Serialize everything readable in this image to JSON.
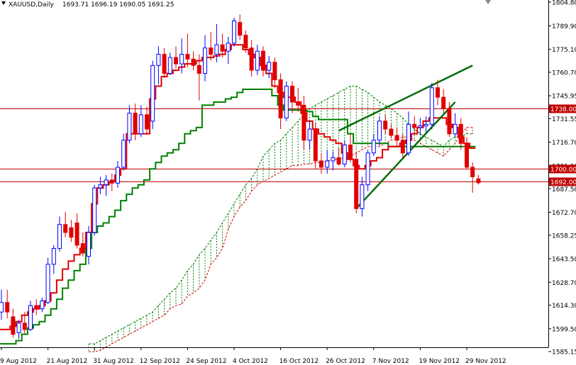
{
  "header": {
    "symbol": "XAUUSD,Daily",
    "ohlc": "1693.71 1696.19 1690.05 1691.25"
  },
  "chart_data": {
    "type": "candlestick",
    "symbol": "XAUUSD",
    "timeframe": "Daily",
    "ylim": [
      1584,
      1806
    ],
    "grid": false,
    "colors": {
      "bull": "#0000ff",
      "bear": "#e00000",
      "tenkan": "#e00000",
      "kijun": "#008000",
      "cloud_bull": "#008000",
      "cloud_bear": "#e00000",
      "trendline": "#0a6e0a",
      "level": "#c00000"
    },
    "y_ticks": [
      "1804.80",
      "1789.90",
      "1775.10",
      "1760.70",
      "1745.95",
      "1731.55",
      "1716.70",
      "1701.90",
      "1687.50",
      "1672.70",
      "1658.25",
      "1643.50",
      "1628.70",
      "1614.30",
      "1599.50",
      "1585.15"
    ],
    "x_ticks": [
      {
        "label": "9 Aug 2012",
        "t": 0
      },
      {
        "label": "21 Aug 2012",
        "t": 8
      },
      {
        "label": "31 Aug 2012",
        "t": 16
      },
      {
        "label": "12 Sep 2012",
        "t": 24
      },
      {
        "label": "24 Sep 2012",
        "t": 32
      },
      {
        "label": "4 Oct 2012",
        "t": 40
      },
      {
        "label": "16 Oct 2012",
        "t": 48
      },
      {
        "label": "26 Oct 2012",
        "t": 56
      },
      {
        "label": "7 Nov 2012",
        "t": 64
      },
      {
        "label": "19 Nov 2012",
        "t": 72
      },
      {
        "label": "29 Nov 2012",
        "t": 80
      }
    ],
    "levels": [
      {
        "label": "1738.00",
        "value": 1738.0
      },
      {
        "label": "1700.00",
        "value": 1700.0
      },
      {
        "label": "1692.00",
        "value": 1692.0
      }
    ],
    "candles": [
      {
        "o": 1610,
        "h": 1624,
        "l": 1605,
        "c": 1616
      },
      {
        "o": 1616,
        "h": 1624,
        "l": 1606,
        "c": 1610
      },
      {
        "o": 1607,
        "h": 1612,
        "l": 1594,
        "c": 1596
      },
      {
        "o": 1597,
        "h": 1605,
        "l": 1593,
        "c": 1603
      },
      {
        "o": 1603,
        "h": 1610,
        "l": 1596,
        "c": 1599
      },
      {
        "o": 1599,
        "h": 1617,
        "l": 1598,
        "c": 1614
      },
      {
        "o": 1614,
        "h": 1618,
        "l": 1608,
        "c": 1612
      },
      {
        "o": 1612,
        "h": 1619,
        "l": 1610,
        "c": 1617
      },
      {
        "o": 1616,
        "h": 1644,
        "l": 1615,
        "c": 1640
      },
      {
        "o": 1640,
        "h": 1652,
        "l": 1634,
        "c": 1650
      },
      {
        "o": 1650,
        "h": 1670,
        "l": 1648,
        "c": 1665
      },
      {
        "o": 1665,
        "h": 1673,
        "l": 1657,
        "c": 1660
      },
      {
        "o": 1663,
        "h": 1668,
        "l": 1654,
        "c": 1657
      },
      {
        "o": 1666,
        "h": 1672,
        "l": 1650,
        "c": 1652
      },
      {
        "o": 1653,
        "h": 1660,
        "l": 1645,
        "c": 1647
      },
      {
        "o": 1645,
        "h": 1664,
        "l": 1640,
        "c": 1660
      },
      {
        "o": 1660,
        "h": 1690,
        "l": 1658,
        "c": 1688
      },
      {
        "o": 1688,
        "h": 1695,
        "l": 1684,
        "c": 1690
      },
      {
        "o": 1690,
        "h": 1696,
        "l": 1683,
        "c": 1693
      },
      {
        "o": 1693,
        "h": 1697,
        "l": 1686,
        "c": 1691
      },
      {
        "o": 1691,
        "h": 1705,
        "l": 1688,
        "c": 1701
      },
      {
        "o": 1701,
        "h": 1722,
        "l": 1699,
        "c": 1718
      },
      {
        "o": 1718,
        "h": 1740,
        "l": 1716,
        "c": 1735
      },
      {
        "o": 1735,
        "h": 1741,
        "l": 1718,
        "c": 1722
      },
      {
        "o": 1722,
        "h": 1740,
        "l": 1720,
        "c": 1734
      },
      {
        "o": 1734,
        "h": 1739,
        "l": 1722,
        "c": 1725
      },
      {
        "o": 1730,
        "h": 1768,
        "l": 1725,
        "c": 1765
      },
      {
        "o": 1765,
        "h": 1777,
        "l": 1753,
        "c": 1772
      },
      {
        "o": 1772,
        "h": 1776,
        "l": 1757,
        "c": 1760
      },
      {
        "o": 1760,
        "h": 1773,
        "l": 1759,
        "c": 1770
      },
      {
        "o": 1770,
        "h": 1777,
        "l": 1763,
        "c": 1766
      },
      {
        "o": 1766,
        "h": 1782,
        "l": 1760,
        "c": 1772
      },
      {
        "o": 1772,
        "h": 1785,
        "l": 1764,
        "c": 1769
      },
      {
        "o": 1769,
        "h": 1774,
        "l": 1762,
        "c": 1765
      },
      {
        "o": 1765,
        "h": 1772,
        "l": 1743,
        "c": 1760
      },
      {
        "o": 1760,
        "h": 1784,
        "l": 1755,
        "c": 1776
      },
      {
        "o": 1776,
        "h": 1786,
        "l": 1768,
        "c": 1772
      },
      {
        "o": 1772,
        "h": 1791,
        "l": 1767,
        "c": 1778
      },
      {
        "o": 1778,
        "h": 1785,
        "l": 1770,
        "c": 1774
      },
      {
        "o": 1774,
        "h": 1783,
        "l": 1766,
        "c": 1779
      },
      {
        "o": 1779,
        "h": 1795,
        "l": 1777,
        "c": 1793
      },
      {
        "o": 1792,
        "h": 1797,
        "l": 1781,
        "c": 1784
      },
      {
        "o": 1784,
        "h": 1787,
        "l": 1773,
        "c": 1776
      },
      {
        "o": 1776,
        "h": 1781,
        "l": 1758,
        "c": 1762
      },
      {
        "o": 1762,
        "h": 1778,
        "l": 1759,
        "c": 1774
      },
      {
        "o": 1774,
        "h": 1777,
        "l": 1758,
        "c": 1762
      },
      {
        "o": 1762,
        "h": 1771,
        "l": 1757,
        "c": 1767
      },
      {
        "o": 1767,
        "h": 1770,
        "l": 1751,
        "c": 1756
      },
      {
        "o": 1756,
        "h": 1760,
        "l": 1725,
        "c": 1732
      },
      {
        "o": 1732,
        "h": 1755,
        "l": 1730,
        "c": 1752
      },
      {
        "o": 1752,
        "h": 1755,
        "l": 1735,
        "c": 1742
      },
      {
        "o": 1742,
        "h": 1751,
        "l": 1736,
        "c": 1740
      },
      {
        "o": 1740,
        "h": 1746,
        "l": 1712,
        "c": 1718
      },
      {
        "o": 1718,
        "h": 1730,
        "l": 1712,
        "c": 1725
      },
      {
        "o": 1725,
        "h": 1729,
        "l": 1700,
        "c": 1705
      },
      {
        "o": 1705,
        "h": 1710,
        "l": 1697,
        "c": 1701
      },
      {
        "o": 1701,
        "h": 1712,
        "l": 1697,
        "c": 1705
      },
      {
        "o": 1705,
        "h": 1711,
        "l": 1699,
        "c": 1707
      },
      {
        "o": 1707,
        "h": 1713,
        "l": 1702,
        "c": 1703
      },
      {
        "o": 1703,
        "h": 1718,
        "l": 1701,
        "c": 1715
      },
      {
        "o": 1715,
        "h": 1722,
        "l": 1704,
        "c": 1706
      },
      {
        "o": 1706,
        "h": 1710,
        "l": 1672,
        "c": 1675
      },
      {
        "o": 1675,
        "h": 1695,
        "l": 1670,
        "c": 1690
      },
      {
        "o": 1690,
        "h": 1712,
        "l": 1686,
        "c": 1710
      },
      {
        "o": 1710,
        "h": 1722,
        "l": 1708,
        "c": 1718
      },
      {
        "o": 1718,
        "h": 1733,
        "l": 1715,
        "c": 1730
      },
      {
        "o": 1730,
        "h": 1734,
        "l": 1722,
        "c": 1725
      },
      {
        "o": 1725,
        "h": 1728,
        "l": 1719,
        "c": 1721
      },
      {
        "o": 1721,
        "h": 1726,
        "l": 1714,
        "c": 1718
      },
      {
        "o": 1718,
        "h": 1722,
        "l": 1707,
        "c": 1710
      },
      {
        "o": 1710,
        "h": 1736,
        "l": 1708,
        "c": 1728
      },
      {
        "o": 1728,
        "h": 1733,
        "l": 1722,
        "c": 1726
      },
      {
        "o": 1726,
        "h": 1732,
        "l": 1721,
        "c": 1727
      },
      {
        "o": 1727,
        "h": 1733,
        "l": 1723,
        "c": 1728
      },
      {
        "o": 1728,
        "h": 1754,
        "l": 1725,
        "c": 1751
      },
      {
        "o": 1751,
        "h": 1756,
        "l": 1740,
        "c": 1745
      },
      {
        "o": 1745,
        "h": 1750,
        "l": 1735,
        "c": 1738
      },
      {
        "o": 1738,
        "h": 1742,
        "l": 1720,
        "c": 1722
      },
      {
        "o": 1722,
        "h": 1735,
        "l": 1720,
        "c": 1728
      },
      {
        "o": 1728,
        "h": 1732,
        "l": 1712,
        "c": 1716
      },
      {
        "o": 1716,
        "h": 1720,
        "l": 1700,
        "c": 1701
      },
      {
        "o": 1701,
        "h": 1704,
        "l": 1685,
        "c": 1695
      },
      {
        "o": 1693.71,
        "h": 1696.19,
        "l": 1690.05,
        "c": 1691.25
      }
    ],
    "tenkan": [
      1599,
      1599,
      1601,
      1604,
      1608,
      1610,
      1612,
      1614,
      1617,
      1622,
      1630,
      1637,
      1642,
      1646,
      1650,
      1660,
      1678,
      1688,
      1690,
      1692,
      1696,
      1700,
      1722,
      1722,
      1722,
      1722,
      1744,
      1752,
      1758,
      1760,
      1762,
      1764,
      1766,
      1766,
      1768,
      1770,
      1770,
      1771,
      1772,
      1775,
      1778,
      1778,
      1775,
      1772,
      1770,
      1765,
      1760,
      1752,
      1748,
      1745,
      1745,
      1742,
      1735,
      1730,
      1725,
      1722,
      1720,
      1718,
      1716,
      1710,
      1706,
      1702,
      1700,
      1702,
      1705,
      1707,
      1712,
      1714,
      1714,
      1716,
      1718,
      1722,
      1726,
      1730,
      1732,
      1732,
      1732,
      1728,
      1726,
      1720,
      1716,
      1713
    ],
    "kijun": [
      1590,
      1590,
      1590,
      1592,
      1596,
      1600,
      1602,
      1604,
      1608,
      1612,
      1618,
      1625,
      1630,
      1636,
      1640,
      1650,
      1660,
      1664,
      1666,
      1670,
      1674,
      1680,
      1684,
      1688,
      1690,
      1693,
      1700,
      1704,
      1708,
      1710,
      1712,
      1716,
      1722,
      1724,
      1726,
      1740,
      1740,
      1742,
      1742,
      1744,
      1745,
      1748,
      1750,
      1750,
      1750,
      1750,
      1750,
      1746,
      1740,
      1737,
      1737,
      1737,
      1737,
      1736,
      1733,
      1731,
      1731,
      1731,
      1731,
      1731,
      1722,
      1716,
      1716,
      1716,
      1716,
      1716,
      1716,
      1714,
      1714,
      1714,
      1714,
      1714,
      1714,
      1714,
      1714,
      1714,
      1714,
      1714,
      1714,
      1714,
      1714,
      1714
    ],
    "cloud_a": [
      1590,
      1590,
      1592,
      1594,
      1596,
      1598,
      1600,
      1602,
      1604,
      1606,
      1608,
      1610,
      1614,
      1618,
      1622,
      1625,
      1630,
      1636,
      1640,
      1646,
      1650,
      1655,
      1660,
      1666,
      1672,
      1678,
      1684,
      1690,
      1694,
      1700,
      1708,
      1712,
      1716,
      1718,
      1722,
      1726,
      1730,
      1734,
      1738,
      1740,
      1742,
      1744,
      1746,
      1748,
      1750,
      1752,
      1752,
      1750,
      1748,
      1745,
      1742,
      1740,
      1738,
      1735,
      1732,
      1728,
      1725,
      1722,
      1720,
      1718,
      1716,
      1714,
      1718,
      1720,
      1720,
      1722,
      1722
    ],
    "cloud_b": [
      1585,
      1585,
      1586,
      1588,
      1590,
      1592,
      1594,
      1596,
      1598,
      1600,
      1602,
      1604,
      1606,
      1608,
      1612,
      1614,
      1615,
      1620,
      1622,
      1625,
      1630,
      1640,
      1644,
      1650,
      1662,
      1670,
      1676,
      1680,
      1686,
      1690,
      1692,
      1694,
      1696,
      1698,
      1700,
      1702,
      1702,
      1703,
      1703,
      1704,
      1704,
      1705,
      1706,
      1706,
      1707,
      1708,
      1710,
      1712,
      1714,
      1714,
      1714,
      1716,
      1718,
      1718,
      1720,
      1720,
      1718,
      1716,
      1714,
      1712,
      1710,
      1708,
      1712,
      1716,
      1722,
      1726,
      1726
    ],
    "cloud_start_index": 15,
    "trendlines": [
      {
        "from": {
          "t": 61,
          "y": 1675
        },
        "to": {
          "t": 78,
          "y": 1742
        }
      },
      {
        "from": {
          "t": 58,
          "y": 1724
        },
        "to": {
          "t": 81,
          "y": 1765
        }
      }
    ]
  }
}
